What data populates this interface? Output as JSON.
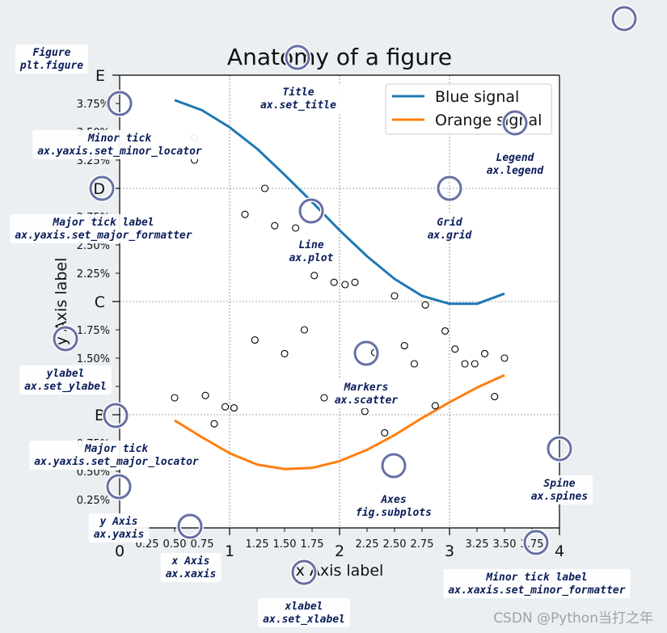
{
  "chart_data": {
    "type": "line",
    "title": "Anatomy of a figure",
    "xlabel": "x Axis label",
    "ylabel": "y Axis label",
    "xlim": [
      0,
      4
    ],
    "ylim": [
      0,
      4
    ],
    "x_major_ticks": [
      {
        "value": 0,
        "label": "0"
      },
      {
        "value": 1,
        "label": "1"
      },
      {
        "value": 2,
        "label": "2"
      },
      {
        "value": 3,
        "label": "3"
      },
      {
        "value": 4,
        "label": "4"
      }
    ],
    "x_minor_ticks": [
      {
        "value": 0.25,
        "label": "0.25"
      },
      {
        "value": 0.5,
        "label": "0.50"
      },
      {
        "value": 0.75,
        "label": "0.75"
      },
      {
        "value": 1.25,
        "label": "1.25"
      },
      {
        "value": 1.5,
        "label": "1.50"
      },
      {
        "value": 1.75,
        "label": "1.75"
      },
      {
        "value": 2.25,
        "label": "2.25"
      },
      {
        "value": 2.5,
        "label": "2.50"
      },
      {
        "value": 2.75,
        "label": "2.75"
      },
      {
        "value": 3.25,
        "label": "3.25"
      },
      {
        "value": 3.5,
        "label": "3.50"
      },
      {
        "value": 3.75,
        "label": "3.75"
      }
    ],
    "y_major_ticks": [
      {
        "value": 1,
        "label": "B"
      },
      {
        "value": 2,
        "label": "C"
      },
      {
        "value": 3,
        "label": "D"
      },
      {
        "value": 4,
        "label": "E"
      }
    ],
    "y_minor_ticks": [
      {
        "value": 0.25,
        "label": "0.25%"
      },
      {
        "value": 0.5,
        "label": "0.50%"
      },
      {
        "value": 0.75,
        "label": "0.75%"
      },
      {
        "value": 1.25,
        "label": "1.25%"
      },
      {
        "value": 1.5,
        "label": "1.50%"
      },
      {
        "value": 1.75,
        "label": "1.75%"
      },
      {
        "value": 2.25,
        "label": "2.25%"
      },
      {
        "value": 2.5,
        "label": "2.50%"
      },
      {
        "value": 2.75,
        "label": "2.75%"
      },
      {
        "value": 3.25,
        "label": "3.25%"
      },
      {
        "value": 3.5,
        "label": "3.50%"
      },
      {
        "value": 3.75,
        "label": "3.75%"
      }
    ],
    "grid": true,
    "legend": {
      "position": "upper-right"
    },
    "series": [
      {
        "name": "Blue signal",
        "color": "#1f77b4",
        "points": [
          [
            0.5,
            3.78
          ],
          [
            0.75,
            3.69
          ],
          [
            1.0,
            3.54
          ],
          [
            1.25,
            3.35
          ],
          [
            1.5,
            3.12
          ],
          [
            1.75,
            2.88
          ],
          [
            2.0,
            2.63
          ],
          [
            2.25,
            2.4
          ],
          [
            2.5,
            2.2
          ],
          [
            2.75,
            2.05
          ],
          [
            3.0,
            1.98
          ],
          [
            3.25,
            1.98
          ],
          [
            3.5,
            2.07
          ]
        ]
      },
      {
        "name": "Orange signal",
        "color": "#ff7f0e",
        "points": [
          [
            0.5,
            0.95
          ],
          [
            0.75,
            0.8
          ],
          [
            1.0,
            0.66
          ],
          [
            1.25,
            0.56
          ],
          [
            1.5,
            0.52
          ],
          [
            1.75,
            0.53
          ],
          [
            2.0,
            0.59
          ],
          [
            2.25,
            0.69
          ],
          [
            2.5,
            0.82
          ],
          [
            2.75,
            0.97
          ],
          [
            3.0,
            1.11
          ],
          [
            3.25,
            1.24
          ],
          [
            3.5,
            1.35
          ]
        ]
      }
    ],
    "scatter": [
      [
        0.5,
        1.15
      ],
      [
        0.68,
        3.25
      ],
      [
        0.68,
        3.45
      ],
      [
        0.78,
        1.17
      ],
      [
        0.86,
        0.92
      ],
      [
        0.96,
        1.07
      ],
      [
        1.04,
        1.06
      ],
      [
        1.14,
        2.77
      ],
      [
        1.23,
        1.66
      ],
      [
        1.32,
        3.0
      ],
      [
        1.41,
        2.67
      ],
      [
        1.5,
        1.54
      ],
      [
        1.6,
        2.65
      ],
      [
        1.68,
        1.75
      ],
      [
        1.77,
        2.23
      ],
      [
        1.86,
        1.15
      ],
      [
        1.95,
        2.17
      ],
      [
        2.05,
        2.15
      ],
      [
        2.14,
        2.17
      ],
      [
        2.23,
        1.03
      ],
      [
        2.32,
        1.55
      ],
      [
        2.41,
        0.84
      ],
      [
        2.5,
        2.05
      ],
      [
        2.59,
        1.61
      ],
      [
        2.68,
        1.45
      ],
      [
        2.78,
        1.97
      ],
      [
        2.87,
        1.08
      ],
      [
        2.96,
        1.74
      ],
      [
        3.05,
        1.58
      ],
      [
        3.14,
        1.45
      ],
      [
        3.23,
        1.45
      ],
      [
        3.32,
        1.54
      ],
      [
        3.41,
        1.16
      ],
      [
        3.5,
        1.5
      ]
    ]
  },
  "annotations": [
    {
      "name": "figure",
      "line1": "Figure",
      "line2": "plt.figure"
    },
    {
      "name": "title",
      "line1": "Title",
      "line2": "ax.set_title"
    },
    {
      "name": "minor-tick",
      "line1": "Minor tick",
      "line2": "ax.yaxis.set_minor_locator"
    },
    {
      "name": "legend",
      "line1": "Legend",
      "line2": "ax.legend"
    },
    {
      "name": "major-tick-label",
      "line1": "Major tick label",
      "line2": "ax.yaxis.set_major_formatter"
    },
    {
      "name": "grid",
      "line1": "Grid",
      "line2": "ax.grid"
    },
    {
      "name": "line",
      "line1": "Line",
      "line2": "ax.plot"
    },
    {
      "name": "ylabel",
      "line1": "ylabel",
      "line2": "ax.set_ylabel"
    },
    {
      "name": "markers",
      "line1": "Markers",
      "line2": "ax.scatter"
    },
    {
      "name": "major-tick",
      "line1": "Major tick",
      "line2": "ax.yaxis.set_major_locator"
    },
    {
      "name": "spine",
      "line1": "Spine",
      "line2": "ax.spines"
    },
    {
      "name": "axes",
      "line1": "Axes",
      "line2": "fig.subplots"
    },
    {
      "name": "y-axis",
      "line1": "y Axis",
      "line2": "ax.yaxis"
    },
    {
      "name": "x-axis",
      "line1": "x Axis",
      "line2": "ax.xaxis"
    },
    {
      "name": "minor-tick-label",
      "line1": "Minor tick label",
      "line2": "ax.xaxis.set_minor_formatter"
    },
    {
      "name": "xlabel",
      "line1": "xlabel",
      "line2": "ax.set_xlabel"
    }
  ],
  "colors": {
    "background": "#ebeff2",
    "marker_ring": "#6670a3",
    "annotation_text": "#0a1d5a"
  },
  "watermark": "CSDN @Python当打之年"
}
